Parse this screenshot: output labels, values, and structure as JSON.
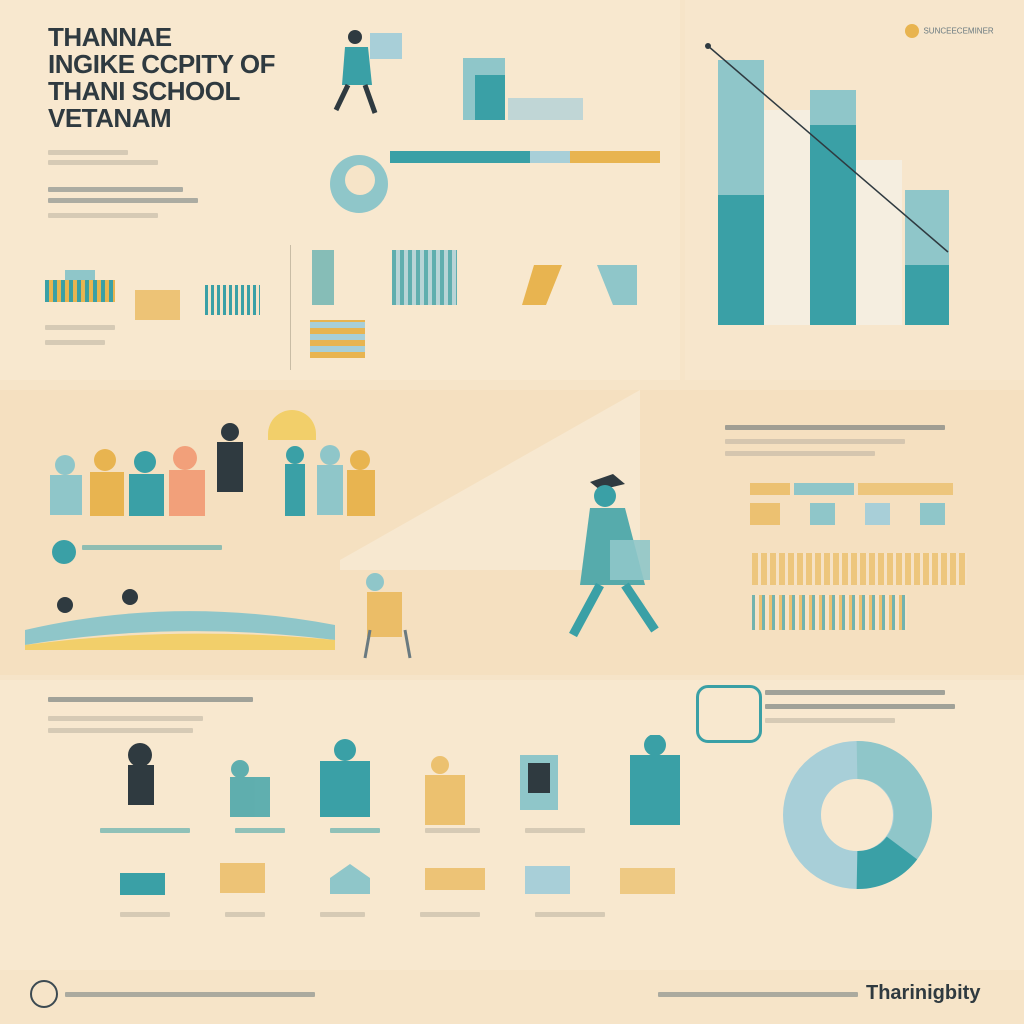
{
  "header": {
    "title_lines": [
      "THANNAE",
      "INGIKE  CCPITY OF",
      "THANI  SCHOOL",
      "VETANAM"
    ]
  },
  "top_right_badge": "SUNCEECEMINER",
  "footer_brand": "Tharinigbity",
  "colors": {
    "background": "#f6e4c8",
    "teal": "#3aa0a6",
    "light_teal": "#8fc6c9",
    "gold": "#e8b450",
    "sky": "#a8cfd8",
    "dark": "#2f3a40"
  },
  "icons": [
    "student-figure-icon",
    "book-icon",
    "school-building-icon",
    "graduate-figure-icon",
    "group-people-icon",
    "house-icon",
    "globe-logo-icon"
  ]
}
